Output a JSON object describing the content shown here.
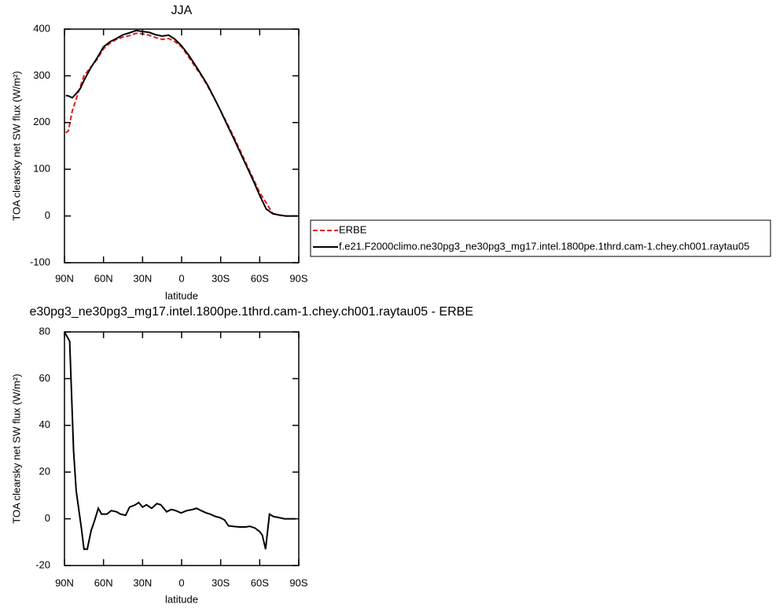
{
  "chart_data": [
    {
      "type": "line",
      "title": "JJA",
      "x_label": "latitude",
      "y_label": "TOA clearsky net SW flux (W/m²)",
      "xlim": [
        90,
        -90
      ],
      "xticks": [
        {
          "value": 90,
          "label": "90N"
        },
        {
          "value": 60,
          "label": "60N"
        },
        {
          "value": 30,
          "label": "30N"
        },
        0,
        {
          "value": -30,
          "label": "30S"
        },
        {
          "value": -60,
          "label": "60S"
        },
        {
          "value": -90,
          "label": "90S"
        }
      ],
      "ylim": [
        -100,
        400
      ],
      "yticks": [
        -100,
        0,
        100,
        200,
        300,
        400
      ],
      "legend": "right",
      "x": [
        89,
        87,
        84,
        81,
        78,
        75,
        70,
        65,
        60,
        55,
        50,
        45,
        40,
        35,
        30,
        25,
        20,
        15,
        10,
        5,
        0,
        -5,
        -10,
        -15,
        -20,
        -25,
        -30,
        -35,
        -40,
        -45,
        -50,
        -55,
        -60,
        -65,
        -70,
        -75,
        -80,
        -85,
        -89
      ],
      "series": [
        {
          "name": "ERBE",
          "color": "#e41a1c",
          "line_style": "dashed",
          "values": [
            178,
            182,
            225,
            250,
            276,
            300,
            318,
            335,
            358,
            370,
            378,
            383,
            386,
            391,
            390,
            387,
            382,
            378,
            380,
            373,
            362,
            342,
            321,
            301,
            278,
            252,
            225,
            198,
            170,
            140,
            110,
            80,
            50,
            28,
            5,
            2,
            0,
            0,
            0
          ]
        },
        {
          "name": "f.e21.F2000climo.ne30pg3_ne30pg3_mg17.intel.1800pe.1thrd.cam-1.chey.ch001.raytau05",
          "color": "#000000",
          "line_style": "solid",
          "values": [
            258,
            257,
            253,
            262,
            272,
            290,
            316,
            338,
            362,
            373,
            380,
            388,
            392,
            397,
            395,
            393,
            388,
            385,
            387,
            378,
            364,
            346,
            325,
            303,
            280,
            253,
            225,
            195,
            166,
            136,
            106,
            76,
            44,
            15,
            5,
            2,
            0,
            0,
            0
          ]
        }
      ]
    },
    {
      "type": "line",
      "title": "e30pg3_ne30pg3_mg17.intel.1800pe.1thrd.cam-1.chey.ch001.raytau05 - ERBE",
      "x_label": "latitude",
      "y_label": "TOA clearsky net SW flux (W/m²)",
      "xlim": [
        90,
        -90
      ],
      "xticks": [
        {
          "value": 90,
          "label": "90N"
        },
        {
          "value": 60,
          "label": "60N"
        },
        {
          "value": 30,
          "label": "30N"
        },
        0,
        {
          "value": -30,
          "label": "30S"
        },
        {
          "value": -60,
          "label": "60S"
        },
        {
          "value": -90,
          "label": "90S"
        }
      ],
      "ylim": [
        -20,
        80
      ],
      "yticks": [
        -20,
        0,
        20,
        40,
        60,
        80
      ],
      "x": [
        90,
        86,
        83,
        81,
        77,
        75,
        72.5,
        69.5,
        67,
        64,
        61.5,
        57.5,
        54,
        50,
        47,
        43,
        40,
        35.5,
        33,
        30,
        27,
        23,
        19,
        16,
        11.5,
        8,
        4.5,
        0.5,
        -4,
        -8.5,
        -11.5,
        -15,
        -19,
        -22,
        -26,
        -29.5,
        -33,
        -36,
        -40.5,
        -44.5,
        -49,
        -52.5,
        -56.5,
        -60,
        -62,
        -64.5,
        -67.5,
        -70.5,
        -75,
        -79,
        -84,
        -87.5
      ],
      "series": [
        {
          "color": "#000000",
          "line_style": "solid",
          "values": [
            80,
            76,
            29,
            12,
            -4,
            -13,
            -13,
            -5,
            -1,
            4.5,
            2,
            2,
            3.5,
            3,
            2,
            1.5,
            5,
            6,
            7,
            5,
            6,
            4.5,
            6.5,
            6,
            3,
            4,
            3.5,
            2.5,
            3.5,
            4,
            4.5,
            3.5,
            2.5,
            2,
            1,
            0.5,
            -0.5,
            -3,
            -3.3,
            -3.5,
            -3.5,
            -3.2,
            -4,
            -5.5,
            -7,
            -13,
            2,
            1,
            0.5,
            0,
            0,
            0
          ]
        }
      ]
    }
  ]
}
